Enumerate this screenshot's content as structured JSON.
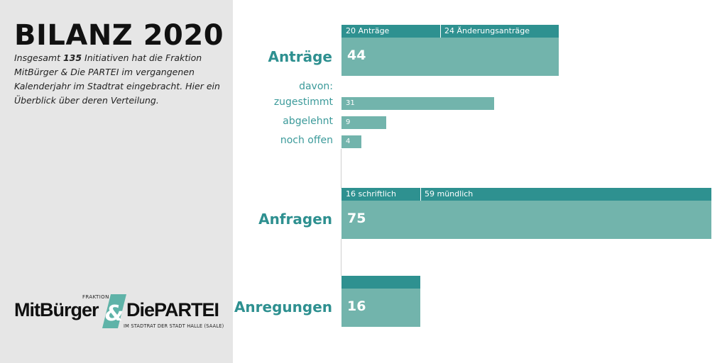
{
  "header": {
    "title": "BILANZ 2020",
    "intro_before": "Insgesamt ",
    "intro_number": "135",
    "intro_after": " Initiativen hat die Fraktion MitBürger & Die PARTEI im vergangenen Kalenderjahr im Stadtrat eingebracht. Hier ein Überblick über deren Verteilung."
  },
  "logo": {
    "small_label": "FRAKTION",
    "left_text": "MitBürger",
    "right_text": "DiePARTEI",
    "subtitle": "IM STADTRAT DER STADT HALLE (SAALE)",
    "accent_color": "#5fb3a8"
  },
  "colors": {
    "bar": "#72b4ac",
    "bar_top": "#2e9190",
    "label": "#2e9090",
    "panel": "#e6e6e6"
  },
  "chart_data": {
    "type": "bar",
    "orientation": "horizontal",
    "max": 75,
    "categories": [
      {
        "label": "Anträge",
        "value": 44,
        "value_label": "44",
        "segments": [
          {
            "label": "20 Anträge",
            "value": 20
          },
          {
            "label": "24 Änderungsanträge",
            "value": 24
          }
        ]
      },
      {
        "label": "Anfragen",
        "value": 75,
        "value_label": "75",
        "segments": [
          {
            "label": "16 schriftlich",
            "value": 16
          },
          {
            "label": "59 mündlich",
            "value": 59
          }
        ]
      },
      {
        "label": "Anregungen",
        "value": 16,
        "value_label": "16",
        "segments": []
      }
    ],
    "breakdown": {
      "heading": "davon:",
      "items": [
        {
          "label": "zugestimmt",
          "value": 31,
          "value_label": "31"
        },
        {
          "label": "abgelehnt",
          "value": 9,
          "value_label": "9"
        },
        {
          "label": "noch offen",
          "value": 4,
          "value_label": "4"
        }
      ]
    }
  }
}
